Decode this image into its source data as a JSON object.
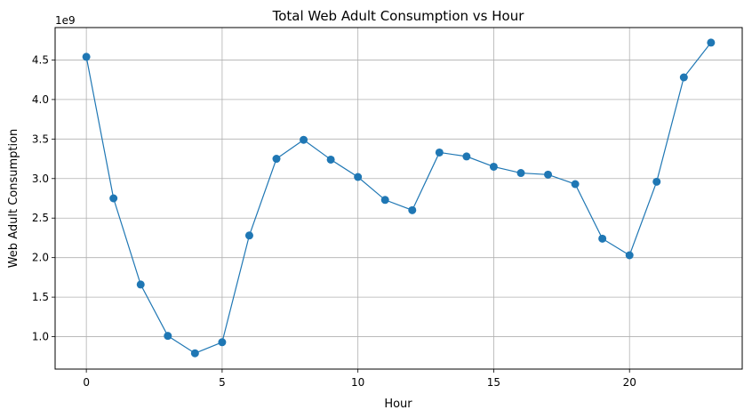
{
  "chart_data": {
    "type": "line",
    "title": "Total Web Adult Consumption vs Hour",
    "xlabel": "Hour",
    "ylabel": "Web Adult Consumption",
    "y_offset_label": "1e9",
    "xlim": [
      -1.15,
      24.15
    ],
    "ylim": [
      0.59,
      4.91
    ],
    "x_ticks": [
      0,
      5,
      10,
      15,
      20
    ],
    "y_ticks": [
      1.0,
      1.5,
      2.0,
      2.5,
      3.0,
      3.5,
      4.0,
      4.5
    ],
    "grid": true,
    "marker": "circle",
    "color": "#1f77b4",
    "series": [
      {
        "x": [
          0,
          1,
          2,
          3,
          4,
          5,
          6,
          7,
          8,
          9,
          10,
          11,
          12,
          13,
          14,
          15,
          16,
          17,
          18,
          19,
          20,
          21,
          22,
          23
        ],
        "values": [
          4.54,
          2.75,
          1.66,
          1.01,
          0.79,
          0.93,
          2.28,
          3.25,
          3.49,
          3.24,
          3.02,
          2.73,
          2.6,
          3.33,
          3.28,
          3.15,
          3.07,
          3.05,
          2.93,
          2.24,
          2.03,
          2.96,
          4.28,
          4.72
        ]
      }
    ]
  }
}
